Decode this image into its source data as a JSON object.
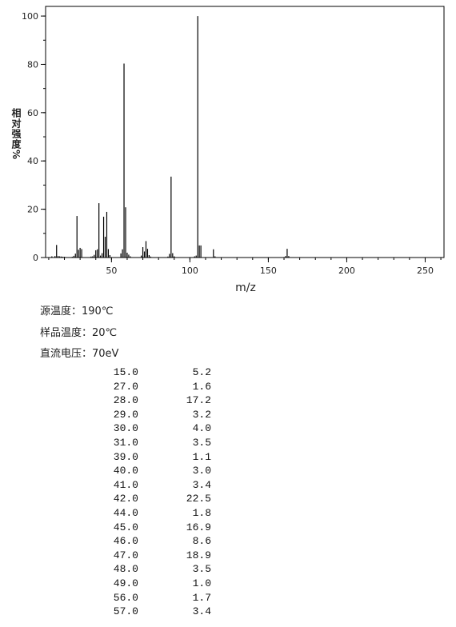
{
  "chart_data": {
    "type": "bar",
    "x_label": "m/z",
    "y_label": "相对强度%",
    "x": [
      12,
      14,
      15,
      16,
      17,
      18,
      19,
      20,
      25,
      26,
      27,
      28,
      29,
      30,
      31,
      37,
      38,
      39,
      40,
      41,
      42,
      43,
      44,
      45,
      46,
      47,
      48,
      49,
      56,
      57,
      58,
      59,
      60,
      61,
      62,
      69,
      70,
      71,
      72,
      73,
      74,
      75,
      86,
      87,
      88,
      89,
      90,
      103,
      104,
      105,
      106,
      107,
      115,
      116,
      161,
      162,
      163
    ],
    "values": [
      0.5,
      0.6,
      5.2,
      0.6,
      0.5,
      0.4,
      0.3,
      0.3,
      0.3,
      0.7,
      1.6,
      17.2,
      3.2,
      4.0,
      3.5,
      0.4,
      0.5,
      1.1,
      3.0,
      3.4,
      22.5,
      0.8,
      1.8,
      16.9,
      8.6,
      18.9,
      3.5,
      1.0,
      1.7,
      3.4,
      80.3,
      20.8,
      2.0,
      1.2,
      0.5,
      0.8,
      4.3,
      2.5,
      6.8,
      3.6,
      1.0,
      0.4,
      0.4,
      1.5,
      33.5,
      1.8,
      0.5,
      0.5,
      0.8,
      100,
      5.0,
      5.0,
      3.4,
      0.5,
      0.6,
      3.6,
      0.6
    ],
    "xlim": [
      8,
      262
    ],
    "ylim": [
      0,
      104
    ],
    "xticks": [
      50,
      100,
      150,
      200,
      250
    ],
    "yticks": [
      0,
      20,
      40,
      60,
      80,
      100
    ],
    "color": "#000000"
  },
  "conditions": [
    "源温度：190℃",
    "样品温度：20℃",
    "直流电压：70eV"
  ],
  "table": {
    "rows": [
      [
        "15.0",
        "5.2"
      ],
      [
        "27.0",
        "1.6"
      ],
      [
        "28.0",
        "17.2"
      ],
      [
        "29.0",
        "3.2"
      ],
      [
        "30.0",
        "4.0"
      ],
      [
        "31.0",
        "3.5"
      ],
      [
        "39.0",
        "1.1"
      ],
      [
        "40.0",
        "3.0"
      ],
      [
        "41.0",
        "3.4"
      ],
      [
        "42.0",
        "22.5"
      ],
      [
        "44.0",
        "1.8"
      ],
      [
        "45.0",
        "16.9"
      ],
      [
        "46.0",
        "8.6"
      ],
      [
        "47.0",
        "18.9"
      ],
      [
        "48.0",
        "3.5"
      ],
      [
        "49.0",
        "1.0"
      ],
      [
        "56.0",
        "1.7"
      ],
      [
        "57.0",
        "3.4"
      ]
    ]
  }
}
